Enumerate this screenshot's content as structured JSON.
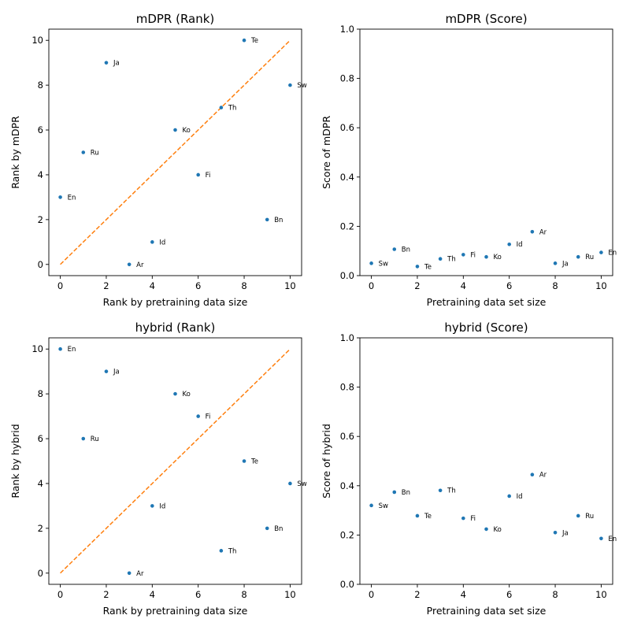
{
  "colors": {
    "points": "#1f77b4",
    "reference_line": "#ff7f0e",
    "axes": "#000000"
  },
  "chart_data": [
    {
      "type": "scatter",
      "title": "mDPR  (Rank)",
      "xlabel": "Rank by pretraining data size",
      "ylabel": "Rank by mDPR",
      "xlim": [
        -0.5,
        10.5
      ],
      "ylim": [
        -0.5,
        10.5
      ],
      "xticks": [
        0,
        2,
        4,
        6,
        8,
        10
      ],
      "yticks": [
        0,
        2,
        4,
        6,
        8,
        10
      ],
      "reference_line": {
        "style": "dashed",
        "from": [
          0,
          0
        ],
        "to": [
          10,
          10
        ]
      },
      "grid": false,
      "points": [
        {
          "label": "En",
          "x": 0,
          "y": 3
        },
        {
          "label": "Ru",
          "x": 1,
          "y": 5
        },
        {
          "label": "Ja",
          "x": 2,
          "y": 9
        },
        {
          "label": "Ar",
          "x": 3,
          "y": 0
        },
        {
          "label": "Id",
          "x": 4,
          "y": 1
        },
        {
          "label": "Ko",
          "x": 5,
          "y": 6
        },
        {
          "label": "Fi",
          "x": 6,
          "y": 4
        },
        {
          "label": "Th",
          "x": 7,
          "y": 7
        },
        {
          "label": "Te",
          "x": 8,
          "y": 10
        },
        {
          "label": "Bn",
          "x": 9,
          "y": 2
        },
        {
          "label": "Sw",
          "x": 10,
          "y": 8
        }
      ]
    },
    {
      "type": "scatter",
      "title": "mDPR  (Score)",
      "xlabel": "Pretraining data set size",
      "ylabel": "Score of mDPR",
      "xlim": [
        -0.5,
        10.5
      ],
      "ylim": [
        0,
        1.0
      ],
      "xticks": [
        0,
        2,
        4,
        6,
        8,
        10
      ],
      "yticks": [
        0.0,
        0.2,
        0.4,
        0.6,
        0.8,
        1.0
      ],
      "grid": false,
      "points": [
        {
          "label": "Sw",
          "x": 0,
          "y": 0.05
        },
        {
          "label": "Bn",
          "x": 1,
          "y": 0.107
        },
        {
          "label": "Te",
          "x": 2,
          "y": 0.037
        },
        {
          "label": "Th",
          "x": 3,
          "y": 0.068
        },
        {
          "label": "Fi",
          "x": 4,
          "y": 0.085
        },
        {
          "label": "Ko",
          "x": 5,
          "y": 0.076
        },
        {
          "label": "Id",
          "x": 6,
          "y": 0.127
        },
        {
          "label": "Ar",
          "x": 7,
          "y": 0.178
        },
        {
          "label": "Ja",
          "x": 8,
          "y": 0.05
        },
        {
          "label": "Ru",
          "x": 9,
          "y": 0.076
        },
        {
          "label": "En",
          "x": 10,
          "y": 0.094
        }
      ]
    },
    {
      "type": "scatter",
      "title": "hybrid (Rank)",
      "xlabel": "Rank by pretraining data size",
      "ylabel": "Rank by hybrid",
      "xlim": [
        -0.5,
        10.5
      ],
      "ylim": [
        -0.5,
        10.5
      ],
      "xticks": [
        0,
        2,
        4,
        6,
        8,
        10
      ],
      "yticks": [
        0,
        2,
        4,
        6,
        8,
        10
      ],
      "reference_line": {
        "style": "dashed",
        "from": [
          0,
          0
        ],
        "to": [
          10,
          10
        ]
      },
      "grid": false,
      "points": [
        {
          "label": "En",
          "x": 0,
          "y": 10
        },
        {
          "label": "Ru",
          "x": 1,
          "y": 6
        },
        {
          "label": "Ja",
          "x": 2,
          "y": 9
        },
        {
          "label": "Ar",
          "x": 3,
          "y": 0
        },
        {
          "label": "Id",
          "x": 4,
          "y": 3
        },
        {
          "label": "Ko",
          "x": 5,
          "y": 8
        },
        {
          "label": "Fi",
          "x": 6,
          "y": 7
        },
        {
          "label": "Th",
          "x": 7,
          "y": 1
        },
        {
          "label": "Te",
          "x": 8,
          "y": 5
        },
        {
          "label": "Bn",
          "x": 9,
          "y": 2
        },
        {
          "label": "Sw",
          "x": 10,
          "y": 4
        }
      ]
    },
    {
      "type": "scatter",
      "title": "hybrid (Score)",
      "xlabel": "Pretraining data set size",
      "ylabel": "Score of hybrid",
      "xlim": [
        -0.5,
        10.5
      ],
      "ylim": [
        0,
        1.0
      ],
      "xticks": [
        0,
        2,
        4,
        6,
        8,
        10
      ],
      "yticks": [
        0.0,
        0.2,
        0.4,
        0.6,
        0.8,
        1.0
      ],
      "grid": false,
      "points": [
        {
          "label": "Sw",
          "x": 0,
          "y": 0.32
        },
        {
          "label": "Bn",
          "x": 1,
          "y": 0.374
        },
        {
          "label": "Te",
          "x": 2,
          "y": 0.278
        },
        {
          "label": "Th",
          "x": 3,
          "y": 0.381
        },
        {
          "label": "Fi",
          "x": 4,
          "y": 0.268
        },
        {
          "label": "Ko",
          "x": 5,
          "y": 0.224
        },
        {
          "label": "Id",
          "x": 6,
          "y": 0.358
        },
        {
          "label": "Ar",
          "x": 7,
          "y": 0.445
        },
        {
          "label": "Ja",
          "x": 8,
          "y": 0.21
        },
        {
          "label": "Ru",
          "x": 9,
          "y": 0.278
        },
        {
          "label": "En",
          "x": 10,
          "y": 0.186
        }
      ]
    }
  ]
}
